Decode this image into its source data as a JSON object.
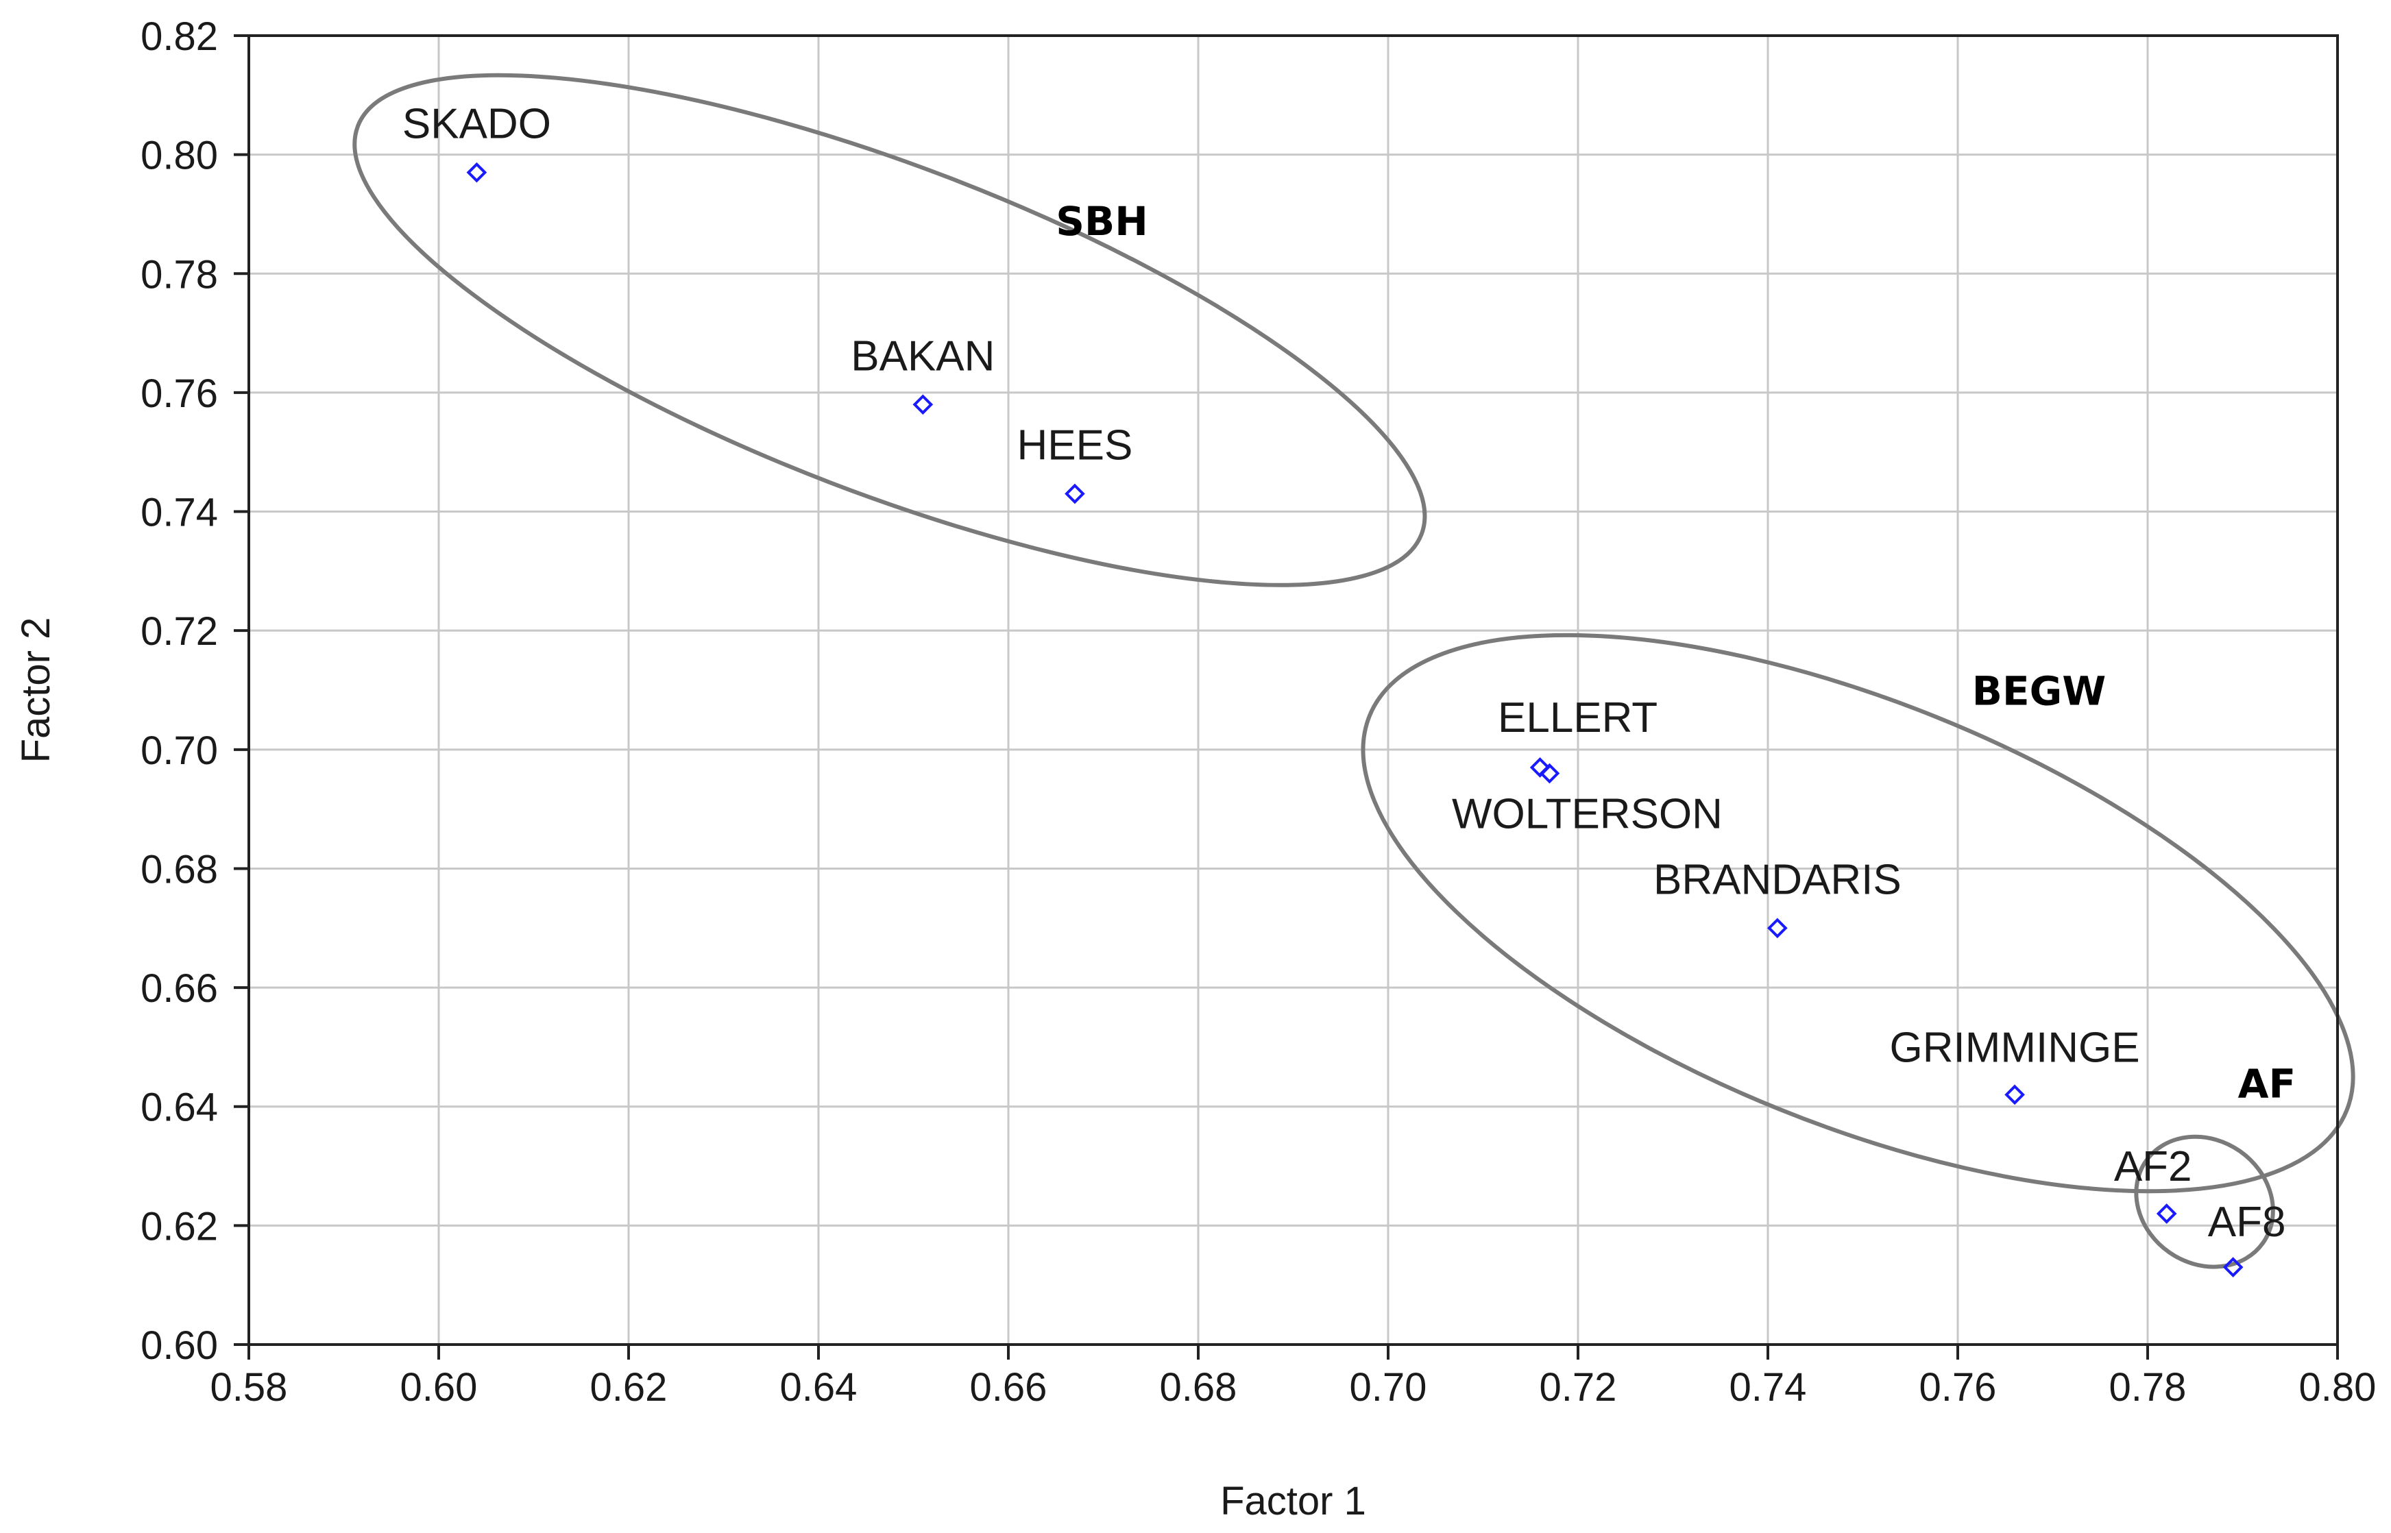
{
  "chart_data": {
    "type": "scatter",
    "title": "",
    "xlabel": "Factor 1",
    "ylabel": "Factor 2",
    "xlim": [
      0.58,
      0.8
    ],
    "ylim": [
      0.6,
      0.82
    ],
    "grid": true,
    "marker_color": "#1a1aff",
    "ellipse_color": "#7a7a7a",
    "x_ticks": [
      "0.58",
      "0.60",
      "0.62",
      "0.64",
      "0.66",
      "0.68",
      "0.70",
      "0.72",
      "0.74",
      "0.76",
      "0.78",
      "0.80"
    ],
    "y_ticks": [
      "0.60",
      "0.62",
      "0.64",
      "0.66",
      "0.68",
      "0.70",
      "0.72",
      "0.74",
      "0.76",
      "0.78",
      "0.80",
      "0.82"
    ],
    "points": [
      {
        "label": "SKADO",
        "x": 0.604,
        "y": 0.797
      },
      {
        "label": "BAKAN",
        "x": 0.651,
        "y": 0.758
      },
      {
        "label": "HEES",
        "x": 0.667,
        "y": 0.743
      },
      {
        "label": "ELLERT",
        "x": 0.716,
        "y": 0.697
      },
      {
        "label": "WOLTERSON",
        "x": 0.717,
        "y": 0.696
      },
      {
        "label": "BRANDARIS",
        "x": 0.741,
        "y": 0.67
      },
      {
        "label": "GRIMMINGE",
        "x": 0.766,
        "y": 0.642
      },
      {
        "label": "AF2",
        "x": 0.782,
        "y": 0.622
      },
      {
        "label": "AF8",
        "x": 0.789,
        "y": 0.613
      }
    ],
    "groups": [
      {
        "label": "SBH",
        "cx": 0.6475,
        "cy": 0.7705,
        "rx": 0.06,
        "ry": 0.0275,
        "angle": 21,
        "label_x": 0.665,
        "label_y": 0.7865
      },
      {
        "label": "BEGW",
        "cx": 0.7495,
        "cy": 0.6725,
        "rx": 0.0555,
        "ry": 0.0355,
        "angle": 22,
        "label_x": 0.7615,
        "label_y": 0.7075
      },
      {
        "label": "AF",
        "cx": 0.786,
        "cy": 0.624,
        "rx": 0.0065,
        "ry": 0.012,
        "angle": -55,
        "label_x": 0.7895,
        "label_y": 0.6415
      }
    ]
  }
}
